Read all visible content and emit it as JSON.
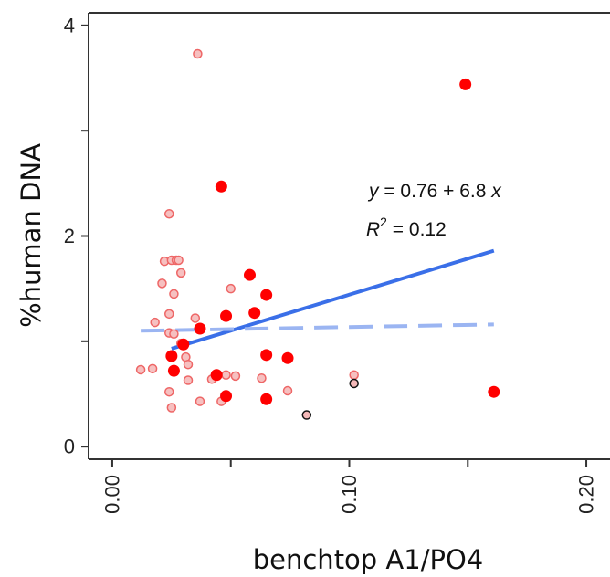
{
  "chart_data": {
    "type": "scatter",
    "xlabel": "benchtop A1/PO4",
    "ylabel": "%human DNA",
    "xlim": [
      -0.01,
      0.21
    ],
    "ylim": [
      -0.12,
      4.12
    ],
    "xticks": [
      0.0,
      0.05,
      0.1,
      0.15,
      0.2
    ],
    "xtick_labels": [
      "0.00",
      "",
      "0.10",
      "",
      "0.20"
    ],
    "yticks": [
      0,
      1,
      2,
      3,
      4
    ],
    "ytick_labels": [
      "0",
      "",
      "2",
      "",
      "4"
    ],
    "grid": false,
    "colors": {
      "filled": "#ff0000",
      "open_fill": "#f6c0c0",
      "open_stroke": "#ee6666",
      "outlier_fill": "#f4b8b8",
      "outlier_stroke": "#111111",
      "fit_line": "#3a6fe8",
      "dashed_line": "#9bb5f2"
    },
    "series": [
      {
        "style": "filled",
        "points": [
          [
            0.149,
            3.44
          ],
          [
            0.046,
            2.47
          ],
          [
            0.058,
            1.63
          ],
          [
            0.065,
            1.44
          ],
          [
            0.06,
            1.27
          ],
          [
            0.048,
            1.24
          ],
          [
            0.037,
            1.12
          ],
          [
            0.03,
            0.97
          ],
          [
            0.025,
            0.86
          ],
          [
            0.065,
            0.87
          ],
          [
            0.074,
            0.84
          ],
          [
            0.044,
            0.68
          ],
          [
            0.026,
            0.72
          ],
          [
            0.048,
            0.48
          ],
          [
            0.065,
            0.45
          ],
          [
            0.161,
            0.52
          ]
        ]
      },
      {
        "style": "open",
        "points": [
          [
            0.036,
            3.73
          ],
          [
            0.024,
            2.21
          ],
          [
            0.022,
            1.76
          ],
          [
            0.025,
            1.77
          ],
          [
            0.027,
            1.77
          ],
          [
            0.028,
            1.77
          ],
          [
            0.029,
            1.65
          ],
          [
            0.021,
            1.55
          ],
          [
            0.026,
            1.45
          ],
          [
            0.05,
            1.5
          ],
          [
            0.035,
            1.22
          ],
          [
            0.018,
            1.18
          ],
          [
            0.024,
            1.26
          ],
          [
            0.024,
            1.08
          ],
          [
            0.026,
            1.07
          ],
          [
            0.029,
            0.98
          ],
          [
            0.031,
            0.85
          ],
          [
            0.032,
            0.78
          ],
          [
            0.017,
            0.74
          ],
          [
            0.012,
            0.73
          ],
          [
            0.032,
            0.63
          ],
          [
            0.042,
            0.64
          ],
          [
            0.046,
            0.43
          ],
          [
            0.037,
            0.43
          ],
          [
            0.024,
            0.52
          ],
          [
            0.025,
            0.37
          ],
          [
            0.048,
            0.68
          ],
          [
            0.052,
            0.67
          ],
          [
            0.063,
            0.65
          ],
          [
            0.074,
            0.53
          ],
          [
            0.102,
            0.68
          ]
        ]
      },
      {
        "style": "outlier",
        "points": [
          [
            0.102,
            0.6
          ],
          [
            0.082,
            0.3
          ]
        ]
      }
    ],
    "lines": [
      {
        "style": "solid",
        "points": [
          [
            0.025,
            0.93
          ],
          [
            0.161,
            1.86
          ]
        ]
      },
      {
        "style": "dashed",
        "points": [
          [
            0.012,
            1.1
          ],
          [
            0.161,
            1.16
          ]
        ]
      }
    ],
    "annotation": {
      "equation_y": "y",
      "equation_rest": " = 0.76 + 6.8 ",
      "equation_x": "x",
      "r2_label": "R",
      "r2_sup": "2",
      "r2_value": " = 0.12"
    }
  }
}
